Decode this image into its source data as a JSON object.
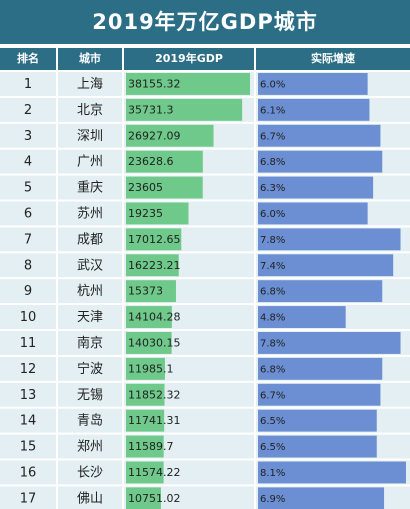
{
  "title": "2019年万亿GDP城市",
  "headers": {
    "rank": "排名",
    "city": "城市",
    "gdp": "2019年GDP",
    "growth": "实际增速"
  },
  "colors": {
    "header_bg": "#2b6e86",
    "row_bg": "#e3eff2",
    "gdp_bar": "#6ec98a",
    "growth_bar": "#6b8fd2",
    "text": "#222222"
  },
  "chart_data": {
    "type": "table",
    "title": "2019年万亿GDP城市",
    "columns": [
      "排名",
      "城市",
      "2019年GDP",
      "实际增速"
    ],
    "rows": [
      {
        "rank": "1",
        "city": "上海",
        "gdp": "38155.32",
        "growth": "6.0%",
        "gdp_value": 38155.32,
        "growth_value": 6.0
      },
      {
        "rank": "2",
        "city": "北京",
        "gdp": "35731.3",
        "growth": "6.1%",
        "gdp_value": 35731.3,
        "growth_value": 6.1
      },
      {
        "rank": "3",
        "city": "深圳",
        "gdp": "26927.09",
        "growth": "6.7%",
        "gdp_value": 26927.09,
        "growth_value": 6.7
      },
      {
        "rank": "4",
        "city": "广州",
        "gdp": "23628.6",
        "growth": "6.8%",
        "gdp_value": 23628.6,
        "growth_value": 6.8
      },
      {
        "rank": "5",
        "city": "重庆",
        "gdp": "23605",
        "growth": "6.3%",
        "gdp_value": 23605,
        "growth_value": 6.3
      },
      {
        "rank": "6",
        "city": "苏州",
        "gdp": "19235",
        "growth": "6.0%",
        "gdp_value": 19235,
        "growth_value": 6.0
      },
      {
        "rank": "7",
        "city": "成都",
        "gdp": "17012.65",
        "growth": "7.8%",
        "gdp_value": 17012.65,
        "growth_value": 7.8
      },
      {
        "rank": "8",
        "city": "武汉",
        "gdp": "16223.21",
        "growth": "7.4%",
        "gdp_value": 16223.21,
        "growth_value": 7.4
      },
      {
        "rank": "9",
        "city": "杭州",
        "gdp": "15373",
        "growth": "6.8%",
        "gdp_value": 15373,
        "growth_value": 6.8
      },
      {
        "rank": "10",
        "city": "天津",
        "gdp": "14104.28",
        "growth": "4.8%",
        "gdp_value": 14104.28,
        "growth_value": 4.8
      },
      {
        "rank": "11",
        "city": "南京",
        "gdp": "14030.15",
        "growth": "7.8%",
        "gdp_value": 14030.15,
        "growth_value": 7.8
      },
      {
        "rank": "12",
        "city": "宁波",
        "gdp": "11985.1",
        "growth": "6.8%",
        "gdp_value": 11985.1,
        "growth_value": 6.8
      },
      {
        "rank": "13",
        "city": "无锡",
        "gdp": "11852.32",
        "growth": "6.7%",
        "gdp_value": 11852.32,
        "growth_value": 6.7
      },
      {
        "rank": "14",
        "city": "青岛",
        "gdp": "11741.31",
        "growth": "6.5%",
        "gdp_value": 11741.31,
        "growth_value": 6.5
      },
      {
        "rank": "15",
        "city": "郑州",
        "gdp": "11589.7",
        "growth": "6.5%",
        "gdp_value": 11589.7,
        "growth_value": 6.5
      },
      {
        "rank": "16",
        "city": "长沙",
        "gdp": "11574.22",
        "growth": "8.1%",
        "gdp_value": 11574.22,
        "growth_value": 8.1
      },
      {
        "rank": "17",
        "city": "佛山",
        "gdp": "10751.02",
        "growth": "6.9%",
        "gdp_value": 10751.02,
        "growth_value": 6.9
      }
    ]
  }
}
